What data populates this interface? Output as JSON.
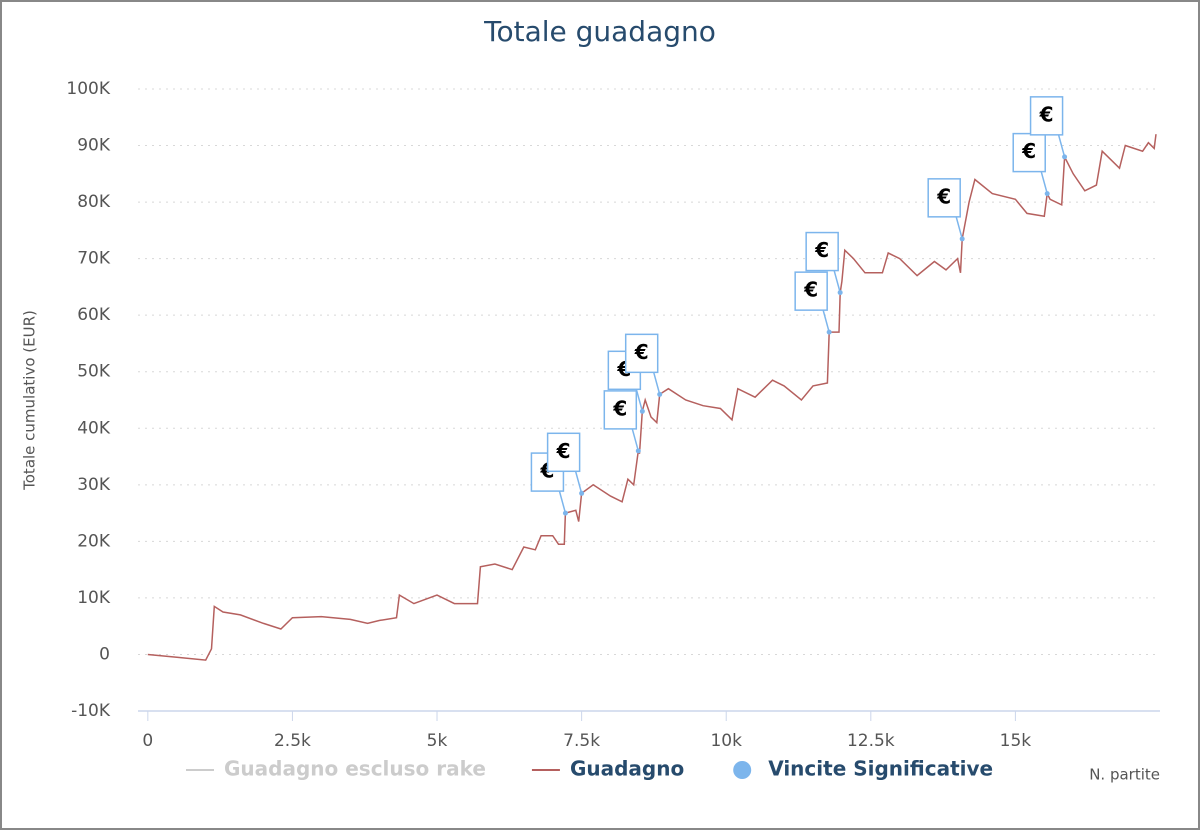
{
  "chart_data": {
    "type": "line",
    "title": "Totale guadagno",
    "ylabel": "Totale cumulativo (EUR)",
    "xlabel": "N. partite",
    "xlim": [
      -170,
      17500
    ],
    "ylim": [
      -10000,
      100000
    ],
    "grid": true,
    "xticks": [
      0,
      {
        "value": 2500,
        "label": "2.5k"
      },
      {
        "value": 5000,
        "label": "5k"
      },
      {
        "value": 7500,
        "label": "7.5k"
      },
      {
        "value": 10000,
        "label": "10k"
      },
      {
        "value": 12500,
        "label": "12.5k"
      },
      {
        "value": 15000,
        "label": "15k"
      }
    ],
    "yticks": [
      {
        "value": -10000,
        "label": "-10K"
      },
      0,
      {
        "value": 10000,
        "label": "10K"
      },
      {
        "value": 20000,
        "label": "20K"
      },
      {
        "value": 30000,
        "label": "30K"
      },
      {
        "value": 40000,
        "label": "40K"
      },
      {
        "value": 50000,
        "label": "50K"
      },
      {
        "value": 60000,
        "label": "60K"
      },
      {
        "value": 70000,
        "label": "70K"
      },
      {
        "value": 80000,
        "label": "80K"
      },
      {
        "value": 90000,
        "label": "90K"
      },
      {
        "value": 100000,
        "label": "100K"
      }
    ],
    "series": [
      {
        "name": "Guadagno escluso rake",
        "color": "#cccccc",
        "visible": false
      },
      {
        "name": "Guadagno",
        "color": "#b5605e",
        "x": [
          0,
          500,
          1000,
          1100,
          1150,
          1300,
          1600,
          2000,
          2300,
          2500,
          3000,
          3500,
          3800,
          4000,
          4300,
          4350,
          4600,
          5000,
          5300,
          5700,
          5750,
          6000,
          6300,
          6500,
          6700,
          6800,
          7000,
          7100,
          7200,
          7220,
          7400,
          7450,
          7500,
          7700,
          8000,
          8200,
          8300,
          8400,
          8480,
          8500,
          8550,
          8600,
          8700,
          8800,
          8850,
          9000,
          9300,
          9600,
          9900,
          10100,
          10200,
          10500,
          10800,
          11000,
          11300,
          11500,
          11750,
          11780,
          11950,
          11970,
          12000,
          12050,
          12200,
          12400,
          12700,
          12800,
          13000,
          13300,
          13600,
          13800,
          14000,
          14050,
          14080,
          14200,
          14300,
          14600,
          15000,
          15200,
          15500,
          15550,
          15600,
          15800,
          15850,
          16000,
          16200,
          16400,
          16500,
          16800,
          16900,
          17200,
          17300,
          17400,
          17430
        ],
        "values": [
          0,
          -500,
          -1000,
          1000,
          8500,
          7500,
          7000,
          5500,
          4500,
          6500,
          6700,
          6200,
          5500,
          6000,
          6500,
          10500,
          9000,
          10500,
          9000,
          9000,
          15500,
          16000,
          15000,
          19000,
          18500,
          21000,
          21000,
          19500,
          19500,
          25000,
          25500,
          23500,
          28500,
          30000,
          28000,
          27000,
          31000,
          30000,
          36000,
          35500,
          43000,
          45000,
          42000,
          41000,
          46000,
          47000,
          45000,
          44000,
          43500,
          41500,
          47000,
          45500,
          48500,
          47500,
          45000,
          47500,
          48000,
          57000,
          57000,
          64000,
          66000,
          71500,
          70000,
          67500,
          67500,
          71000,
          70000,
          67000,
          69500,
          68000,
          70000,
          67500,
          73500,
          80000,
          84000,
          81500,
          80500,
          78000,
          77500,
          81500,
          80500,
          79500,
          88000,
          85000,
          82000,
          83000,
          89000,
          86000,
          90000,
          89000,
          90500,
          89500,
          92000
        ]
      },
      {
        "name": "Vincite Significative",
        "type": "scatter",
        "color": "#7cb5ec",
        "x": [
          7220,
          7500,
          8480,
          8550,
          8850,
          11780,
          11970,
          14080,
          15550,
          15850
        ],
        "values": [
          25000,
          28500,
          36000,
          43000,
          46000,
          57000,
          64000,
          73500,
          81500,
          88000
        ],
        "labels": [
          "€",
          "€",
          "€",
          "€",
          "€",
          "€",
          "€",
          "€",
          "€",
          "€"
        ]
      }
    ]
  }
}
